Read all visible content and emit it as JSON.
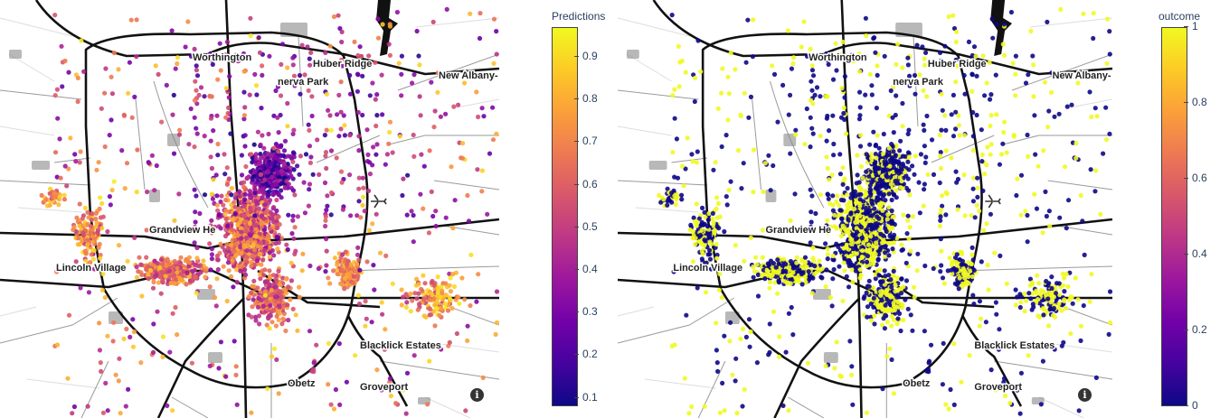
{
  "panels": [
    {
      "id": "left",
      "colorbar": {
        "title": "Predictions",
        "ticks": [
          "0.9",
          "0.8",
          "0.7",
          "0.6",
          "0.5",
          "0.4",
          "0.3",
          "0.2",
          "0.1"
        ],
        "tick_values": [
          0.9,
          0.8,
          0.7,
          0.6,
          0.5,
          0.4,
          0.3,
          0.2,
          0.1
        ],
        "range": [
          0.08,
          0.97
        ]
      },
      "info_symbol": "i"
    },
    {
      "id": "right",
      "colorbar": {
        "title": "outcome",
        "ticks": [
          "1",
          "0.8",
          "0.6",
          "0.4",
          "0.2",
          "0"
        ],
        "tick_values": [
          1,
          0.8,
          0.6,
          0.4,
          0.2,
          0
        ],
        "range": [
          0,
          1
        ]
      },
      "info_symbol": "i"
    }
  ],
  "map": {
    "labels": [
      {
        "name": "Worthington"
      },
      {
        "name": "Huber Ridge"
      },
      {
        "name": "Minerva Park",
        "display": "nerva Park"
      },
      {
        "name": "New Albany",
        "display": "New Albany-"
      },
      {
        "name": "Grandview Heights",
        "display": "Grandview He"
      },
      {
        "name": "Lincoln Village",
        "display": "Lincoln Village"
      },
      {
        "name": "Blacklick Estates"
      },
      {
        "name": "Obetz"
      },
      {
        "name": "Groveport"
      }
    ],
    "icons": [
      "airport-icon",
      "info-icon"
    ]
  },
  "colorscale": [
    "#0d0887",
    "#46039f",
    "#7201a8",
    "#9c179e",
    "#bd3786",
    "#d8576b",
    "#ed7953",
    "#fb9f3a",
    "#fdca26",
    "#f0f921"
  ],
  "colors": {
    "highway": "#111111",
    "minor_road": "#9a9a9a",
    "background": "#ffffff",
    "water": "#111111"
  }
}
